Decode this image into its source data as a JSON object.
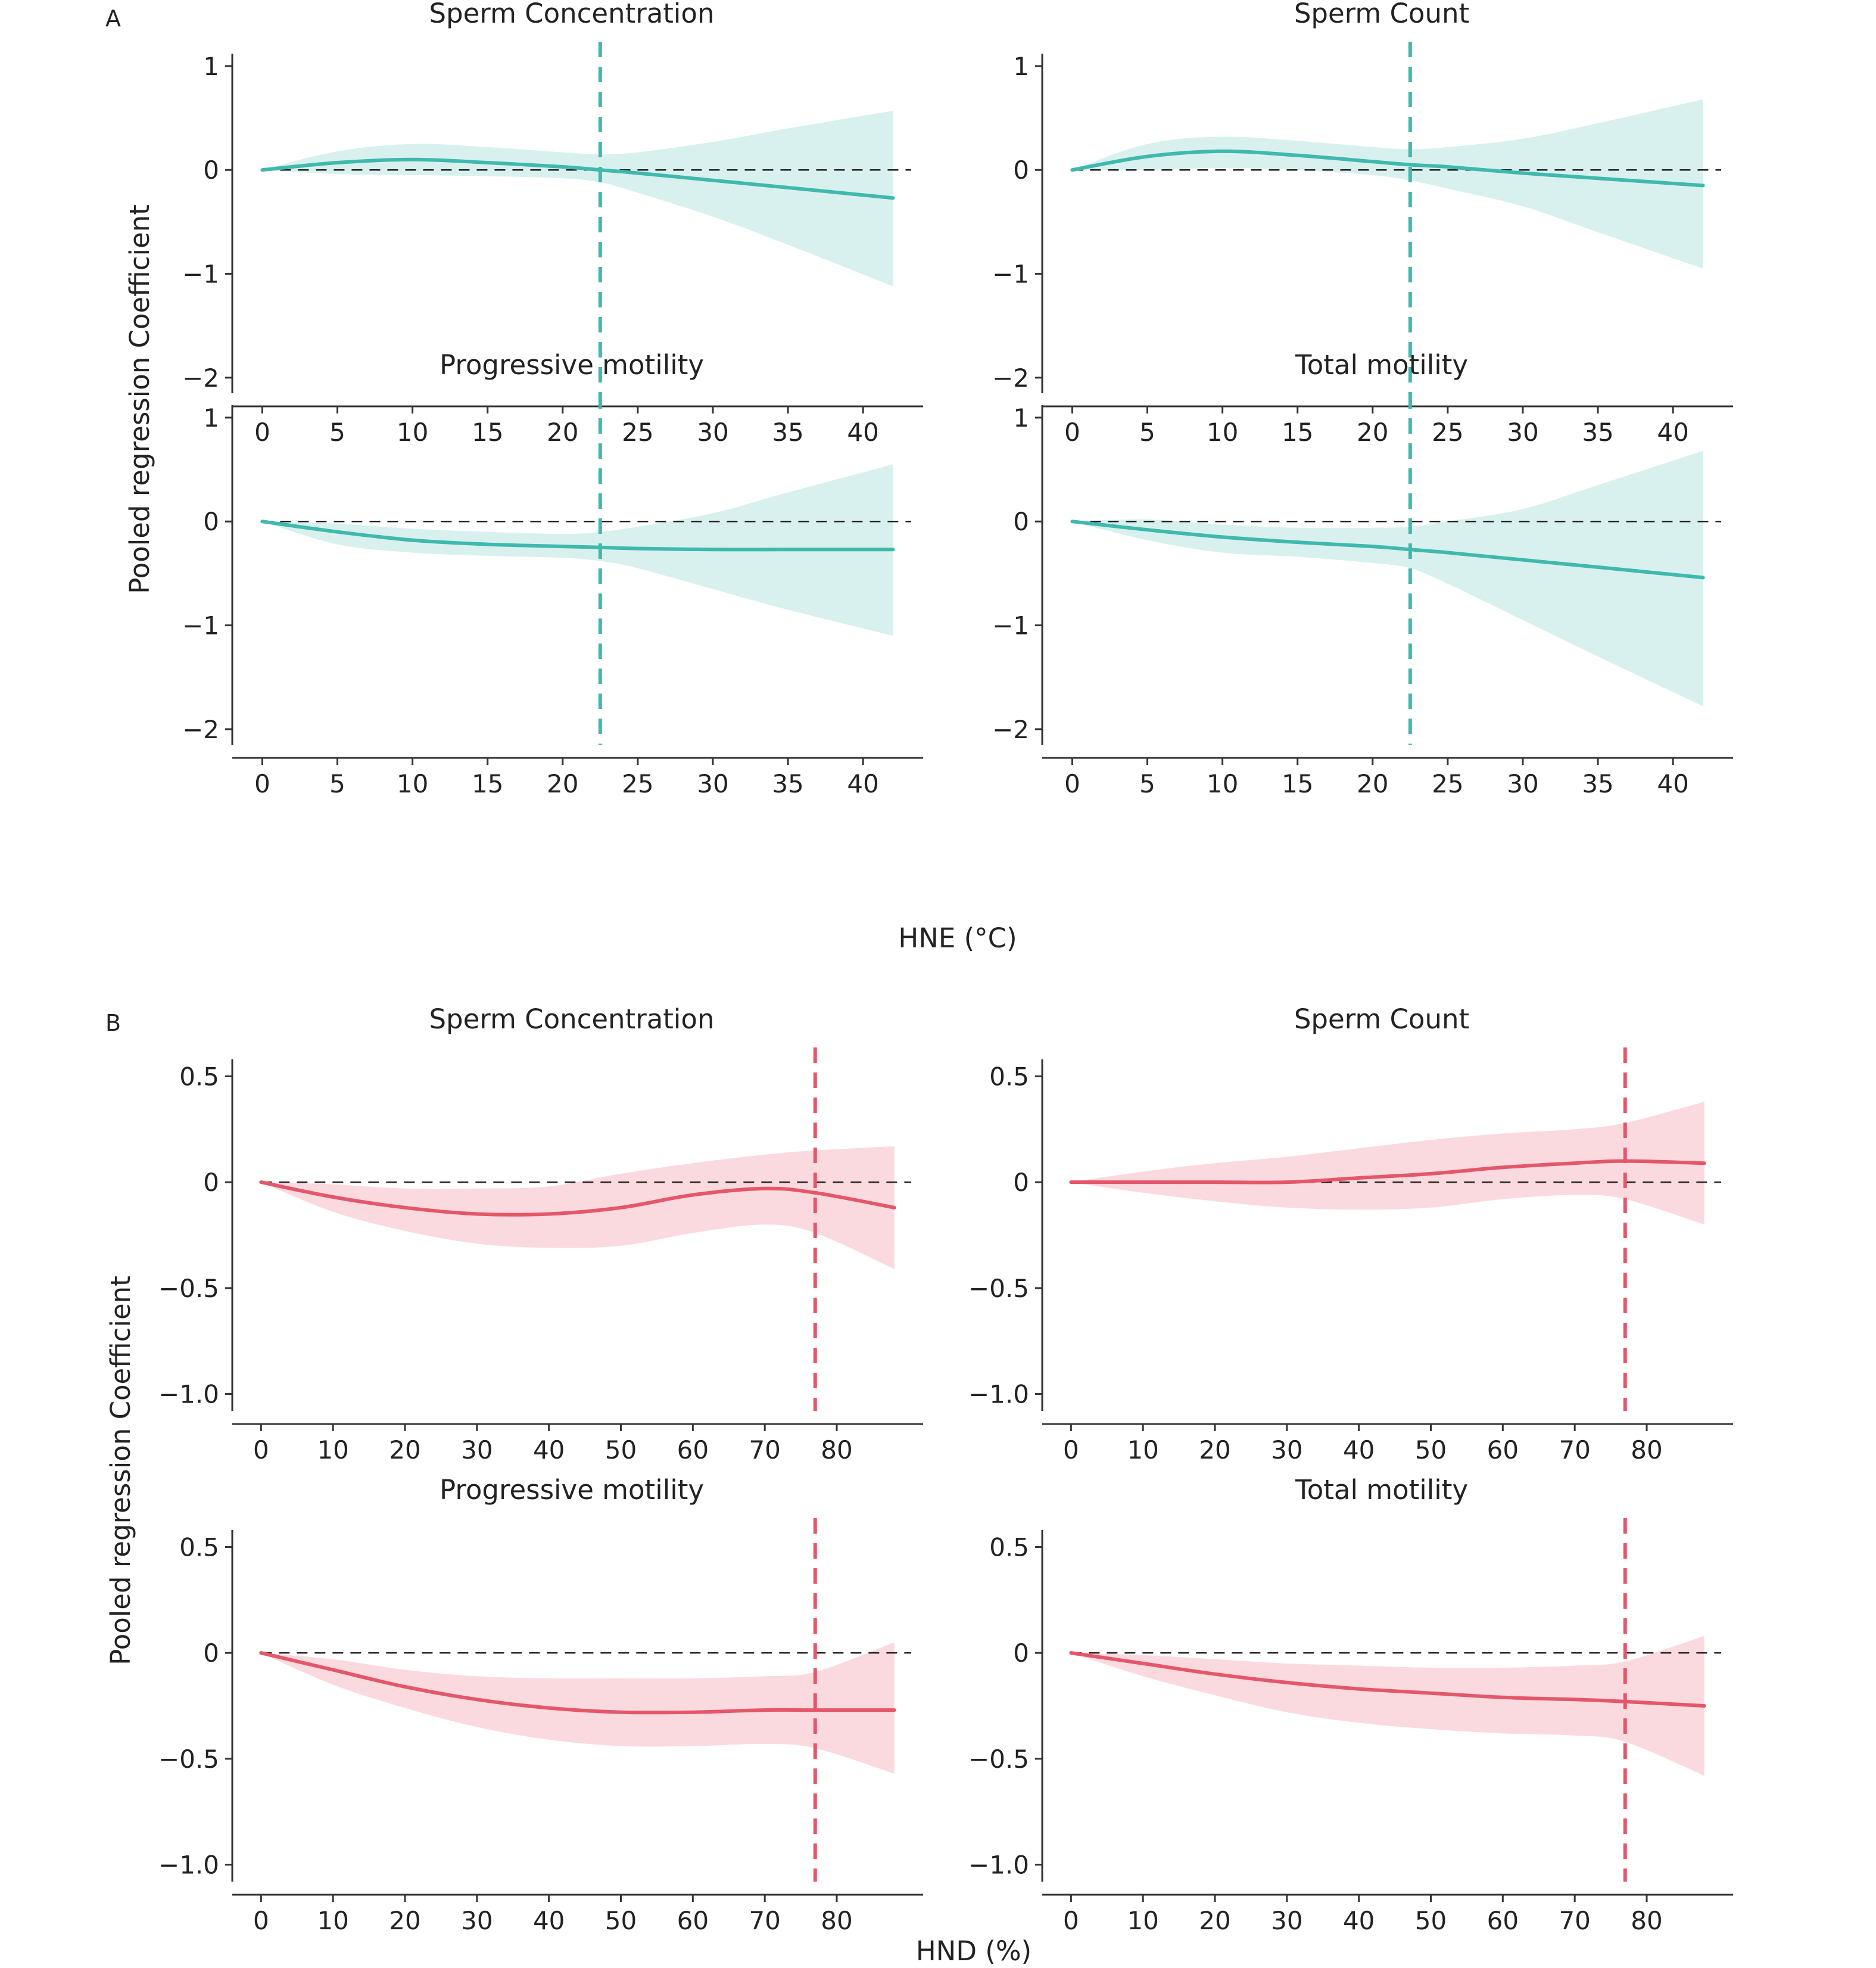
{
  "figure": {
    "sections": [
      {
        "letter": "A",
        "xlabel": "HNE (°C)",
        "ylabel": "Pooled regression Coefficient",
        "line_color": "#3fb9ad",
        "band_color": "#d8f1ee"
      },
      {
        "letter": "B",
        "xlabel": "HND (%)",
        "ylabel": "Pooled regression Coefficient",
        "line_color": "#e4576a",
        "band_color": "#fbdadf"
      }
    ]
  },
  "chart_data": [
    {
      "type": "line",
      "section": "A",
      "title": "Sperm Concentration",
      "xlim": [
        -2,
        44
      ],
      "ylim": [
        -2.15,
        1.12
      ],
      "xticks": [
        0,
        5,
        10,
        15,
        20,
        25,
        30,
        35,
        40
      ],
      "yticks": [
        1,
        0,
        -1,
        -2
      ],
      "ytick_labels": [
        "1",
        "0",
        "−1",
        "−2"
      ],
      "threshold_x": 22.5,
      "x": [
        0,
        5,
        10,
        15,
        20,
        22.5,
        25,
        30,
        35,
        42
      ],
      "series": [
        {
          "y": [
            0,
            0.07,
            0.1,
            0.07,
            0.03,
            0,
            -0.03,
            -0.1,
            -0.17,
            -0.27
          ],
          "lower": [
            0,
            -0.04,
            -0.05,
            -0.06,
            -0.08,
            -0.12,
            -0.22,
            -0.45,
            -0.72,
            -1.12
          ],
          "upper": [
            0,
            0.18,
            0.25,
            0.22,
            0.17,
            0.15,
            0.17,
            0.27,
            0.4,
            0.57
          ]
        }
      ]
    },
    {
      "type": "line",
      "section": "A",
      "title": "Sperm Count",
      "xlim": [
        -2,
        44
      ],
      "ylim": [
        -2.15,
        1.12
      ],
      "xticks": [
        0,
        5,
        10,
        15,
        20,
        25,
        30,
        35,
        40
      ],
      "yticks": [
        1,
        0,
        -1,
        -2
      ],
      "ytick_labels": [
        "1",
        "0",
        "−1",
        "−2"
      ],
      "threshold_x": 22.5,
      "x": [
        0,
        5,
        10,
        15,
        20,
        22.5,
        25,
        30,
        35,
        42
      ],
      "series": [
        {
          "y": [
            0,
            0.13,
            0.18,
            0.14,
            0.08,
            0.05,
            0.03,
            -0.03,
            -0.08,
            -0.15
          ],
          "lower": [
            0,
            0,
            0.02,
            0,
            -0.05,
            -0.1,
            -0.18,
            -0.35,
            -0.6,
            -0.95
          ],
          "upper": [
            0,
            0.25,
            0.32,
            0.28,
            0.22,
            0.2,
            0.22,
            0.3,
            0.45,
            0.68
          ]
        }
      ]
    },
    {
      "type": "line",
      "section": "A",
      "title": "Progressive motility",
      "xlim": [
        -2,
        44
      ],
      "ylim": [
        -2.15,
        1.12
      ],
      "xticks": [
        0,
        5,
        10,
        15,
        20,
        25,
        30,
        35,
        40
      ],
      "yticks": [
        1,
        0,
        -1,
        -2
      ],
      "ytick_labels": [
        "1",
        "0",
        "−1",
        "−2"
      ],
      "threshold_x": 22.5,
      "x": [
        0,
        5,
        10,
        15,
        20,
        22.5,
        25,
        30,
        35,
        42
      ],
      "series": [
        {
          "y": [
            0,
            -0.1,
            -0.18,
            -0.22,
            -0.24,
            -0.25,
            -0.26,
            -0.27,
            -0.27,
            -0.27
          ],
          "lower": [
            0,
            -0.22,
            -0.3,
            -0.33,
            -0.35,
            -0.38,
            -0.45,
            -0.65,
            -0.85,
            -1.1
          ],
          "upper": [
            0,
            -0.02,
            -0.07,
            -0.1,
            -0.12,
            -0.1,
            -0.05,
            0.08,
            0.28,
            0.55
          ]
        }
      ]
    },
    {
      "type": "line",
      "section": "A",
      "title": "Total motility",
      "xlim": [
        -2,
        44
      ],
      "ylim": [
        -2.15,
        1.12
      ],
      "xticks": [
        0,
        5,
        10,
        15,
        20,
        25,
        30,
        35,
        40
      ],
      "yticks": [
        1,
        0,
        -1,
        -2
      ],
      "ytick_labels": [
        "1",
        "0",
        "−1",
        "−2"
      ],
      "threshold_x": 22.5,
      "x": [
        0,
        5,
        10,
        15,
        20,
        22.5,
        25,
        30,
        35,
        42
      ],
      "series": [
        {
          "y": [
            0,
            -0.08,
            -0.15,
            -0.2,
            -0.24,
            -0.27,
            -0.3,
            -0.37,
            -0.44,
            -0.54
          ],
          "lower": [
            0,
            -0.18,
            -0.3,
            -0.34,
            -0.4,
            -0.45,
            -0.6,
            -0.95,
            -1.3,
            -1.78
          ],
          "upper": [
            0,
            0.02,
            -0.03,
            -0.06,
            -0.06,
            -0.05,
            0,
            0.12,
            0.35,
            0.68
          ]
        }
      ]
    },
    {
      "type": "line",
      "section": "B",
      "title": "Sperm Concentration",
      "xlim": [
        -4,
        92
      ],
      "ylim": [
        -1.08,
        0.58
      ],
      "xticks": [
        0,
        10,
        20,
        30,
        40,
        50,
        60,
        70,
        80
      ],
      "yticks": [
        0.5,
        0,
        -0.5,
        -1
      ],
      "ytick_labels": [
        "0.5",
        "0",
        "−0.5",
        "−1.0"
      ],
      "threshold_x": 77,
      "x": [
        0,
        10,
        20,
        30,
        40,
        50,
        60,
        70,
        77,
        88
      ],
      "series": [
        {
          "y": [
            0,
            -0.07,
            -0.12,
            -0.15,
            -0.15,
            -0.12,
            -0.06,
            -0.03,
            -0.05,
            -0.12
          ],
          "lower": [
            0,
            -0.14,
            -0.23,
            -0.29,
            -0.31,
            -0.3,
            -0.24,
            -0.2,
            -0.24,
            -0.41
          ],
          "upper": [
            0,
            -0.01,
            -0.03,
            -0.03,
            -0.02,
            0.04,
            0.09,
            0.13,
            0.15,
            0.17
          ]
        }
      ]
    },
    {
      "type": "line",
      "section": "B",
      "title": "Sperm Count",
      "xlim": [
        -4,
        92
      ],
      "ylim": [
        -1.08,
        0.58
      ],
      "xticks": [
        0,
        10,
        20,
        30,
        40,
        50,
        60,
        70,
        80
      ],
      "yticks": [
        0.5,
        0,
        -0.5,
        -1
      ],
      "ytick_labels": [
        "0.5",
        "0",
        "−0.5",
        "−1.0"
      ],
      "threshold_x": 77,
      "x": [
        0,
        10,
        20,
        30,
        40,
        50,
        60,
        70,
        77,
        88
      ],
      "series": [
        {
          "y": [
            0,
            0,
            0,
            0,
            0.02,
            0.04,
            0.07,
            0.09,
            0.1,
            0.09
          ],
          "lower": [
            0,
            -0.05,
            -0.09,
            -0.12,
            -0.13,
            -0.12,
            -0.08,
            -0.06,
            -0.08,
            -0.2
          ],
          "upper": [
            0,
            0.05,
            0.09,
            0.12,
            0.16,
            0.2,
            0.23,
            0.25,
            0.28,
            0.38
          ]
        }
      ]
    },
    {
      "type": "line",
      "section": "B",
      "title": "Progressive motility",
      "xlim": [
        -4,
        92
      ],
      "ylim": [
        -1.08,
        0.58
      ],
      "xticks": [
        0,
        10,
        20,
        30,
        40,
        50,
        60,
        70,
        80
      ],
      "yticks": [
        0.5,
        0,
        -0.5,
        -1
      ],
      "ytick_labels": [
        "0.5",
        "0",
        "−0.5",
        "−1.0"
      ],
      "threshold_x": 77,
      "x": [
        0,
        10,
        20,
        30,
        40,
        50,
        60,
        70,
        77,
        88
      ],
      "series": [
        {
          "y": [
            0,
            -0.08,
            -0.16,
            -0.22,
            -0.26,
            -0.28,
            -0.28,
            -0.27,
            -0.27,
            -0.27
          ],
          "lower": [
            0,
            -0.15,
            -0.26,
            -0.35,
            -0.41,
            -0.44,
            -0.44,
            -0.43,
            -0.45,
            -0.57
          ],
          "upper": [
            0,
            -0.03,
            -0.08,
            -0.11,
            -0.12,
            -0.12,
            -0.12,
            -0.11,
            -0.09,
            0.05
          ]
        }
      ]
    },
    {
      "type": "line",
      "section": "B",
      "title": "Total motility",
      "xlim": [
        -4,
        92
      ],
      "ylim": [
        -1.08,
        0.58
      ],
      "xticks": [
        0,
        10,
        20,
        30,
        40,
        50,
        60,
        70,
        80
      ],
      "yticks": [
        0.5,
        0,
        -0.5,
        -1
      ],
      "ytick_labels": [
        "0.5",
        "0",
        "−0.5",
        "−1.0"
      ],
      "threshold_x": 77,
      "x": [
        0,
        10,
        20,
        30,
        40,
        50,
        60,
        70,
        77,
        88
      ],
      "series": [
        {
          "y": [
            0,
            -0.05,
            -0.1,
            -0.14,
            -0.17,
            -0.19,
            -0.21,
            -0.22,
            -0.23,
            -0.25
          ],
          "lower": [
            0,
            -0.11,
            -0.2,
            -0.28,
            -0.33,
            -0.36,
            -0.38,
            -0.39,
            -0.42,
            -0.58
          ],
          "upper": [
            0,
            -0.01,
            -0.03,
            -0.05,
            -0.06,
            -0.07,
            -0.07,
            -0.06,
            -0.04,
            0.08
          ]
        }
      ]
    }
  ]
}
